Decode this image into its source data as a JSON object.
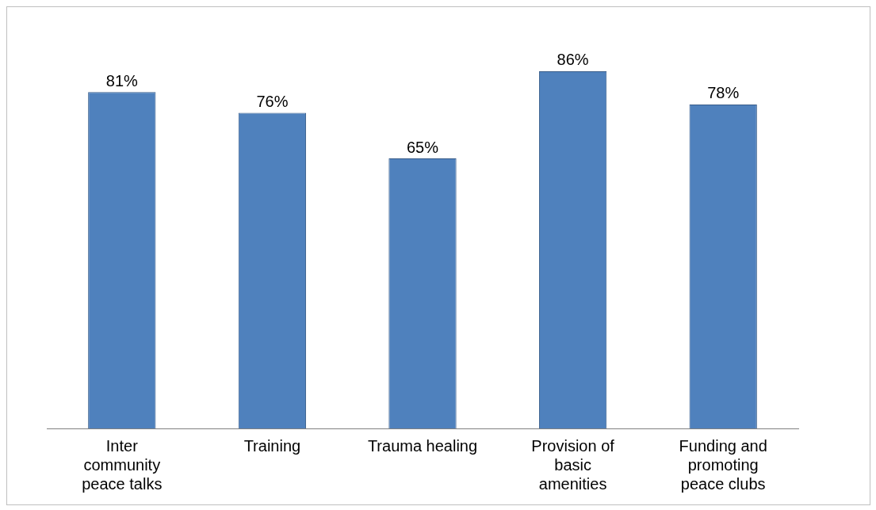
{
  "chart_data": {
    "type": "bar",
    "categories": [
      "Inter community peace talks",
      "Training",
      "Trauma healing",
      "Provision of basic amenities",
      "Funding and promoting peace clubs"
    ],
    "values": [
      81,
      76,
      65,
      86,
      78
    ],
    "value_labels": [
      "81%",
      "76%",
      "65%",
      "86%",
      "78%"
    ],
    "color": "#4f81bd",
    "grid": false,
    "legend": false,
    "tick_labels": "x"
  }
}
